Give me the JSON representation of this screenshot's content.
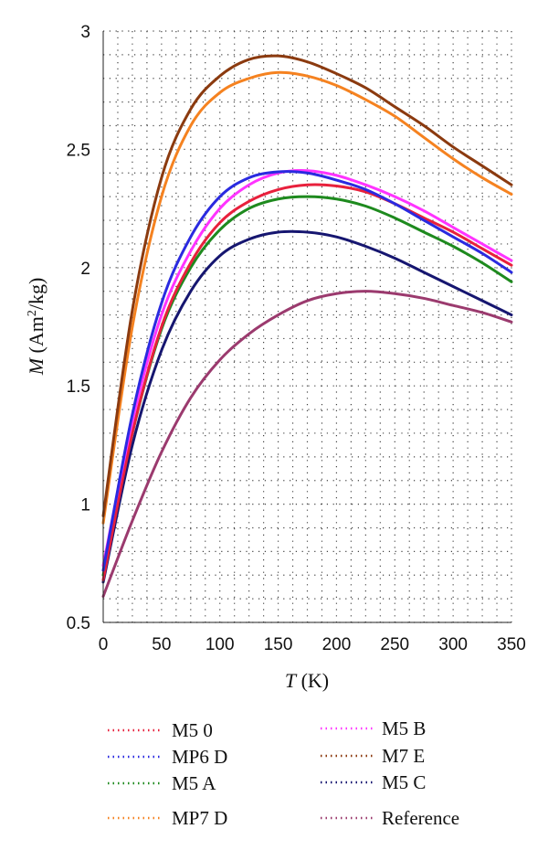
{
  "chart_data": {
    "type": "line",
    "xlabel": {
      "var": "T",
      "unit": " (K)"
    },
    "ylabel": {
      "var": "M",
      "unit_pre": " (Am",
      "unit_sup": "2",
      "unit_post": "/kg)"
    },
    "xlim": [
      0,
      350
    ],
    "ylim": [
      0.5,
      3
    ],
    "x_ticks": [
      "0",
      "50",
      "100",
      "150",
      "200",
      "250",
      "300",
      "350"
    ],
    "y_ticks": [
      "0.5",
      "1",
      "1.5",
      "2",
      "2.5",
      "3"
    ],
    "grid": "dotted",
    "legend_placement": "bottom",
    "series": [
      {
        "name": "M5 0",
        "color": "#e8203c",
        "points": [
          [
            0,
            0.68
          ],
          [
            25,
            1.3
          ],
          [
            50,
            1.75
          ],
          [
            75,
            2.02
          ],
          [
            100,
            2.19
          ],
          [
            125,
            2.28
          ],
          [
            150,
            2.33
          ],
          [
            175,
            2.35
          ],
          [
            200,
            2.345
          ],
          [
            225,
            2.32
          ],
          [
            250,
            2.27
          ],
          [
            275,
            2.21
          ],
          [
            300,
            2.15
          ],
          [
            325,
            2.08
          ],
          [
            350,
            2.01
          ]
        ]
      },
      {
        "name": "MP6 D",
        "color": "#2a2ae0",
        "points": [
          [
            0,
            0.72
          ],
          [
            25,
            1.38
          ],
          [
            50,
            1.85
          ],
          [
            75,
            2.13
          ],
          [
            100,
            2.3
          ],
          [
            125,
            2.38
          ],
          [
            150,
            2.405
          ],
          [
            175,
            2.4
          ],
          [
            200,
            2.37
          ],
          [
            225,
            2.33
          ],
          [
            250,
            2.27
          ],
          [
            275,
            2.2
          ],
          [
            300,
            2.13
          ],
          [
            325,
            2.06
          ],
          [
            350,
            1.98
          ]
        ]
      },
      {
        "name": "M5 A",
        "color": "#1e8a1e",
        "points": [
          [
            0,
            0.7
          ],
          [
            25,
            1.3
          ],
          [
            50,
            1.74
          ],
          [
            75,
            2.0
          ],
          [
            100,
            2.16
          ],
          [
            125,
            2.25
          ],
          [
            150,
            2.29
          ],
          [
            175,
            2.3
          ],
          [
            200,
            2.29
          ],
          [
            225,
            2.26
          ],
          [
            250,
            2.21
          ],
          [
            275,
            2.15
          ],
          [
            300,
            2.09
          ],
          [
            325,
            2.02
          ],
          [
            350,
            1.94
          ]
        ]
      },
      {
        "name": "MP7 D",
        "color": "#f58220",
        "points": [
          [
            0,
            0.92
          ],
          [
            25,
            1.75
          ],
          [
            50,
            2.3
          ],
          [
            75,
            2.6
          ],
          [
            100,
            2.74
          ],
          [
            125,
            2.8
          ],
          [
            150,
            2.825
          ],
          [
            175,
            2.81
          ],
          [
            200,
            2.77
          ],
          [
            225,
            2.71
          ],
          [
            250,
            2.64
          ],
          [
            275,
            2.55
          ],
          [
            300,
            2.46
          ],
          [
            325,
            2.38
          ],
          [
            350,
            2.31
          ]
        ]
      },
      {
        "name": "M5 B",
        "color": "#ff33ff",
        "points": [
          [
            0,
            0.74
          ],
          [
            25,
            1.35
          ],
          [
            50,
            1.8
          ],
          [
            75,
            2.07
          ],
          [
            100,
            2.25
          ],
          [
            125,
            2.35
          ],
          [
            150,
            2.4
          ],
          [
            175,
            2.41
          ],
          [
            200,
            2.39
          ],
          [
            225,
            2.35
          ],
          [
            250,
            2.3
          ],
          [
            275,
            2.24
          ],
          [
            300,
            2.17
          ],
          [
            325,
            2.1
          ],
          [
            350,
            2.03
          ]
        ]
      },
      {
        "name": "M7 E",
        "color": "#8b3a0f",
        "points": [
          [
            0,
            0.95
          ],
          [
            25,
            1.82
          ],
          [
            50,
            2.38
          ],
          [
            75,
            2.67
          ],
          [
            100,
            2.81
          ],
          [
            125,
            2.88
          ],
          [
            150,
            2.895
          ],
          [
            175,
            2.87
          ],
          [
            200,
            2.82
          ],
          [
            225,
            2.76
          ],
          [
            250,
            2.68
          ],
          [
            275,
            2.6
          ],
          [
            300,
            2.51
          ],
          [
            325,
            2.43
          ],
          [
            350,
            2.35
          ]
        ]
      },
      {
        "name": "M5 C",
        "color": "#161670",
        "points": [
          [
            0,
            0.67
          ],
          [
            25,
            1.25
          ],
          [
            50,
            1.65
          ],
          [
            75,
            1.9
          ],
          [
            100,
            2.05
          ],
          [
            125,
            2.12
          ],
          [
            150,
            2.15
          ],
          [
            175,
            2.15
          ],
          [
            200,
            2.13
          ],
          [
            225,
            2.09
          ],
          [
            250,
            2.04
          ],
          [
            275,
            1.98
          ],
          [
            300,
            1.92
          ],
          [
            325,
            1.86
          ],
          [
            350,
            1.8
          ]
        ]
      },
      {
        "name": "Reference",
        "color": "#9b3a6e",
        "points": [
          [
            0,
            0.61
          ],
          [
            25,
            0.93
          ],
          [
            50,
            1.22
          ],
          [
            75,
            1.45
          ],
          [
            100,
            1.61
          ],
          [
            125,
            1.72
          ],
          [
            150,
            1.8
          ],
          [
            175,
            1.86
          ],
          [
            200,
            1.89
          ],
          [
            225,
            1.9
          ],
          [
            250,
            1.89
          ],
          [
            275,
            1.87
          ],
          [
            300,
            1.84
          ],
          [
            325,
            1.81
          ],
          [
            350,
            1.77
          ]
        ]
      }
    ]
  }
}
